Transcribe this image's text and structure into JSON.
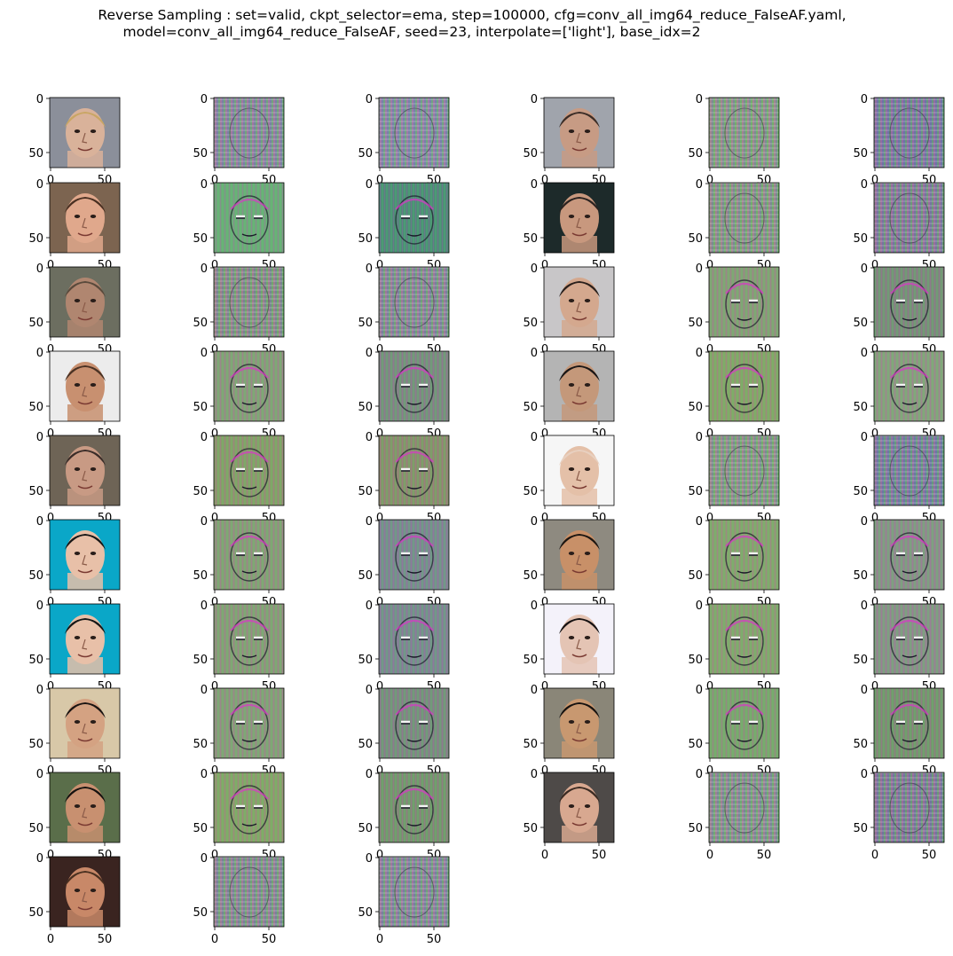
{
  "title": {
    "line1": "Reverse Sampling : set=valid, ckpt_selector=ema, step=100000, cfg=conv_all_img64_reduce_FalseAF.yaml,",
    "line2": "model=conv_all_img64_reduce_FalseAF, seed=23, interpolate=['light'], base_idx=2"
  },
  "axis": {
    "ytick_top": "0",
    "ytick_bottom": "50",
    "xtick_left": "0",
    "xtick_right": "50"
  },
  "rows": [
    [
      {
        "kind": "face",
        "skin": "#d9b29a",
        "hair": "#c9a664",
        "bg": "#8b8f9a"
      },
      {
        "kind": "noise",
        "tint": "#8c8a90"
      },
      {
        "kind": "noise",
        "tint": "#8a8c98"
      },
      {
        "kind": "face",
        "skin": "#c79b84",
        "hair": "#3a2c26",
        "bg": "#a0a4ac"
      },
      {
        "kind": "noise",
        "tint": "#8e9a7a"
      },
      {
        "kind": "noise",
        "tint": "#7c7a92"
      }
    ],
    [
      {
        "kind": "face",
        "skin": "#e0a88c",
        "hair": "#4a3022",
        "bg": "#7c6450"
      },
      {
        "kind": "recon",
        "tint": "#6fa87a"
      },
      {
        "kind": "recon",
        "tint": "#4f8a78"
      },
      {
        "kind": "face",
        "skin": "#c8987e",
        "hair": "#2a2220",
        "bg": "#1d2a2a"
      },
      {
        "kind": "noise",
        "tint": "#8c9878"
      },
      {
        "kind": "noise",
        "tint": "#867c8a"
      }
    ],
    [
      {
        "kind": "face",
        "skin": "#b08670",
        "hair": "#5a4a3c",
        "bg": "#6c6e60"
      },
      {
        "kind": "noise",
        "tint": "#8a9078"
      },
      {
        "kind": "noise",
        "tint": "#8a8a88"
      },
      {
        "kind": "face",
        "skin": "#d4a88e",
        "hair": "#2a201c",
        "bg": "#c8c6c8"
      },
      {
        "kind": "recon",
        "tint": "#8a9a78"
      },
      {
        "kind": "recon",
        "tint": "#7c8a7a"
      }
    ],
    [
      {
        "kind": "face",
        "skin": "#c89070",
        "hair": "#4a3224",
        "bg": "#ececec"
      },
      {
        "kind": "recon",
        "tint": "#8a9a7a"
      },
      {
        "kind": "recon",
        "tint": "#7c8a80"
      },
      {
        "kind": "face",
        "skin": "#c4987a",
        "hair": "#1a1616",
        "bg": "#b4b4b4"
      },
      {
        "kind": "recon",
        "tint": "#8aa06a"
      },
      {
        "kind": "recon",
        "tint": "#8c9a80"
      }
    ],
    [
      {
        "kind": "face",
        "skin": "#c89a84",
        "hair": "#3a2c28",
        "bg": "#6e6456"
      },
      {
        "kind": "recon",
        "tint": "#8a9a6a"
      },
      {
        "kind": "recon",
        "tint": "#8a8e6c"
      },
      {
        "kind": "face",
        "skin": "#e4c0a8",
        "hair": "#e8d0c0",
        "bg": "#f6f6f6"
      },
      {
        "kind": "noise",
        "tint": "#8c9a78"
      },
      {
        "kind": "noise",
        "tint": "#7a8090"
      }
    ],
    [
      {
        "kind": "face",
        "skin": "#e8c0a8",
        "hair": "#161616",
        "bg": "#0aa7c8"
      },
      {
        "kind": "recon",
        "tint": "#8a9a78"
      },
      {
        "kind": "recon",
        "tint": "#7c8890"
      },
      {
        "kind": "face",
        "skin": "#c89068",
        "hair": "#1c1612",
        "bg": "#8e8a80"
      },
      {
        "kind": "recon",
        "tint": "#8aa070"
      },
      {
        "kind": "recon",
        "tint": "#8a9088"
      }
    ],
    [
      {
        "kind": "face",
        "skin": "#e8c0a8",
        "hair": "#161616",
        "bg": "#0aa7c8"
      },
      {
        "kind": "recon",
        "tint": "#8a9a78"
      },
      {
        "kind": "recon",
        "tint": "#7c8890"
      },
      {
        "kind": "face",
        "skin": "#e4c4b4",
        "hair": "#161212",
        "bg": "#f4f2fa"
      },
      {
        "kind": "recon",
        "tint": "#8aa070"
      },
      {
        "kind": "recon",
        "tint": "#8a9088"
      }
    ],
    [
      {
        "kind": "face",
        "skin": "#d4a282",
        "hair": "#1a1412",
        "bg": "#d8c8a8"
      },
      {
        "kind": "recon",
        "tint": "#8a9a7a"
      },
      {
        "kind": "recon",
        "tint": "#7c8a80"
      },
      {
        "kind": "face",
        "skin": "#c89870",
        "hair": "#161210",
        "bg": "#8a8678"
      },
      {
        "kind": "recon",
        "tint": "#80a070"
      },
      {
        "kind": "recon",
        "tint": "#7a9070"
      }
    ],
    [
      {
        "kind": "face",
        "skin": "#c89070",
        "hair": "#161210",
        "bg": "#5a6e4a"
      },
      {
        "kind": "recon",
        "tint": "#8aa06a"
      },
      {
        "kind": "recon",
        "tint": "#7a9070"
      },
      {
        "kind": "face",
        "skin": "#d8a890",
        "hair": "#3a2a22",
        "bg": "#4e4a48"
      },
      {
        "kind": "noise",
        "tint": "#8a9480"
      },
      {
        "kind": "noise",
        "tint": "#827c88"
      }
    ],
    [
      {
        "kind": "face",
        "skin": "#c88868",
        "hair": "#4a3020",
        "bg": "#3a2420"
      },
      {
        "kind": "noise",
        "tint": "#8a8e84"
      },
      {
        "kind": "noise",
        "tint": "#8a8a8c"
      }
    ]
  ]
}
